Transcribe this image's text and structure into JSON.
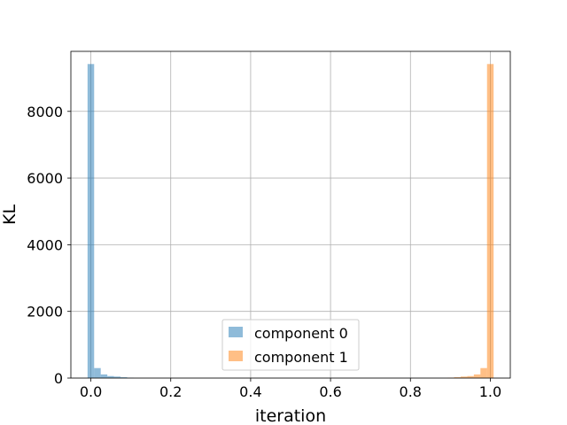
{
  "chart_data": {
    "type": "bar",
    "xlabel": "iteration",
    "ylabel": "KL",
    "xlim": [
      -0.05,
      1.05
    ],
    "ylim": [
      0,
      9800
    ],
    "grid": true,
    "legend_placement": "bottom-center",
    "x_ticks": [
      "0.0",
      "0.2",
      "0.4",
      "0.6",
      "0.8",
      "1.0"
    ],
    "y_ticks": [
      "0",
      "2000",
      "4000",
      "6000",
      "8000"
    ],
    "bin_width": 0.0165,
    "series": [
      {
        "name": "component 0",
        "color": "#1f77b4",
        "opacity": 0.5,
        "bins": [
          {
            "x": 0.0,
            "value": 9420
          },
          {
            "x": 0.0165,
            "value": 300
          },
          {
            "x": 0.033,
            "value": 110
          },
          {
            "x": 0.0495,
            "value": 60
          },
          {
            "x": 0.066,
            "value": 45
          },
          {
            "x": 0.0825,
            "value": 25
          },
          {
            "x": 0.099,
            "value": 10
          }
        ]
      },
      {
        "name": "component 1",
        "color": "#ff7f0e",
        "opacity": 0.5,
        "bins": [
          {
            "x": 0.901,
            "value": 10
          },
          {
            "x": 0.9175,
            "value": 25
          },
          {
            "x": 0.934,
            "value": 45
          },
          {
            "x": 0.9505,
            "value": 60
          },
          {
            "x": 0.967,
            "value": 110
          },
          {
            "x": 0.9835,
            "value": 300
          },
          {
            "x": 1.0,
            "value": 9420
          }
        ]
      }
    ]
  }
}
